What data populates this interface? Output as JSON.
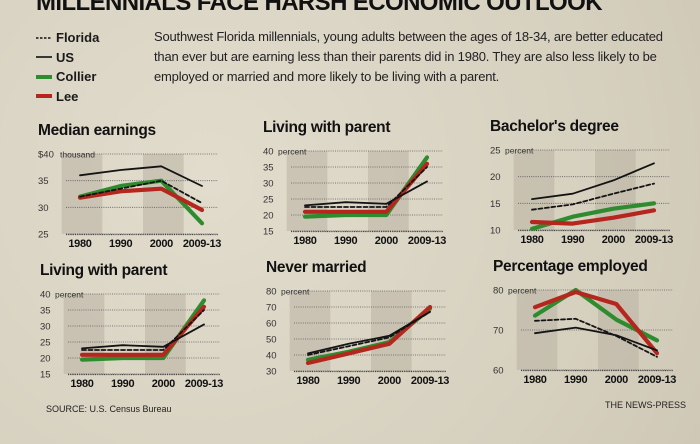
{
  "header": {
    "title": "MILLENNIALS FACE HARSH ECONOMIC OUTLOOK",
    "intro": "Southwest Florida millennials, young adults between the ages of 18-34, are better educated than ever but are earning less than their parents did in 1980. They are also less likely to be employed or married and more likely to be living with a parent."
  },
  "legend": [
    {
      "name": "Florida",
      "style": "dashed",
      "color": "#111111"
    },
    {
      "name": "US",
      "style": "solid-thin",
      "color": "#111111"
    },
    {
      "name": "Collier",
      "style": "solid-thick",
      "color": "#2e8b2e"
    },
    {
      "name": "Lee",
      "style": "solid-thick",
      "color": "#b5261e"
    }
  ],
  "footer": {
    "source": "SOURCE: U.S. Census Bureau",
    "credit": "THE NEWS-PRESS"
  },
  "chart_data": [
    {
      "type": "line",
      "title": "Median earnings",
      "unit_label": "thousand",
      "categories": [
        "1980",
        "1990",
        "2000",
        "2009-13"
      ],
      "yticks": [
        "25",
        "30",
        "35",
        "$40"
      ],
      "ylim": [
        25,
        40
      ],
      "series": [
        {
          "name": "US",
          "values": [
            36,
            37,
            37.7,
            34
          ]
        },
        {
          "name": "Florida",
          "values": [
            32,
            33.5,
            35,
            30.8
          ]
        },
        {
          "name": "Collier",
          "values": [
            32,
            34,
            35,
            27
          ]
        },
        {
          "name": "Lee",
          "values": [
            31.8,
            33,
            33.5,
            29.5
          ]
        }
      ]
    },
    {
      "type": "line",
      "title": "Living with parent",
      "unit_label": "percent",
      "categories": [
        "1980",
        "1990",
        "2000",
        "2009-13"
      ],
      "yticks": [
        "15",
        "20",
        "25",
        "30",
        "35",
        "40"
      ],
      "ylim": [
        15,
        40
      ],
      "series": [
        {
          "name": "US",
          "values": [
            23,
            24,
            23.5,
            30.5
          ]
        },
        {
          "name": "Florida",
          "values": [
            22.5,
            22.5,
            22.5,
            35
          ]
        },
        {
          "name": "Collier",
          "values": [
            19.5,
            20,
            20,
            38
          ]
        },
        {
          "name": "Lee",
          "values": [
            21,
            21,
            21,
            36
          ]
        }
      ]
    },
    {
      "type": "line",
      "title": "Bachelor's degree",
      "unit_label": "percent",
      "categories": [
        "1980",
        "1990",
        "2000",
        "2009-13"
      ],
      "yticks": [
        "10",
        "15",
        "20",
        "25"
      ],
      "ylim": [
        10,
        25
      ],
      "series": [
        {
          "name": "US",
          "values": [
            15.8,
            16.8,
            19.3,
            22.5
          ]
        },
        {
          "name": "Florida",
          "values": [
            13.8,
            14.8,
            16.8,
            18.7
          ]
        },
        {
          "name": "Collier",
          "values": [
            10.2,
            12.5,
            14,
            15
          ]
        },
        {
          "name": "Lee",
          "values": [
            11.5,
            11.2,
            12.3,
            13.7
          ]
        }
      ]
    },
    {
      "type": "line",
      "title": "Living with parent",
      "unit_label": "percent",
      "categories": [
        "1980",
        "1990",
        "2000",
        "2009-13"
      ],
      "yticks": [
        "15",
        "20",
        "25",
        "30",
        "35",
        "40"
      ],
      "ylim": [
        15,
        40
      ],
      "series": [
        {
          "name": "US",
          "values": [
            23,
            24,
            23.5,
            30.5
          ]
        },
        {
          "name": "Florida",
          "values": [
            22.5,
            22.5,
            22.5,
            35
          ]
        },
        {
          "name": "Collier",
          "values": [
            19.5,
            20,
            20,
            38
          ]
        },
        {
          "name": "Lee",
          "values": [
            21,
            21,
            21,
            36
          ]
        }
      ]
    },
    {
      "type": "line",
      "title": "Never married",
      "unit_label": "percent",
      "categories": [
        "1980",
        "1990",
        "2000",
        "2009-13"
      ],
      "yticks": [
        "30",
        "40",
        "50",
        "60",
        "70",
        "80"
      ],
      "ylim": [
        30,
        80
      ],
      "series": [
        {
          "name": "US",
          "values": [
            41,
            47,
            52,
            67
          ]
        },
        {
          "name": "Florida",
          "values": [
            40,
            45.5,
            51,
            67
          ]
        },
        {
          "name": "Collier",
          "values": [
            37,
            42,
            48,
            69
          ]
        },
        {
          "name": "Lee",
          "values": [
            35,
            41,
            47,
            70
          ]
        }
      ]
    },
    {
      "type": "line",
      "title": "Percentage employed",
      "unit_label": "percent",
      "categories": [
        "1980",
        "1990",
        "2000",
        "2009-13"
      ],
      "yticks": [
        "60",
        "70",
        "80"
      ],
      "ylim": [
        60,
        80
      ],
      "series": [
        {
          "name": "US",
          "values": [
            69.2,
            70.6,
            68.7,
            64.9
          ]
        },
        {
          "name": "Florida",
          "values": [
            72.3,
            72.8,
            68.5,
            63.3
          ]
        },
        {
          "name": "Collier",
          "values": [
            73.6,
            80,
            72.6,
            67.4
          ]
        },
        {
          "name": "Lee",
          "values": [
            75.7,
            79.5,
            76.5,
            64.2
          ]
        }
      ]
    }
  ]
}
